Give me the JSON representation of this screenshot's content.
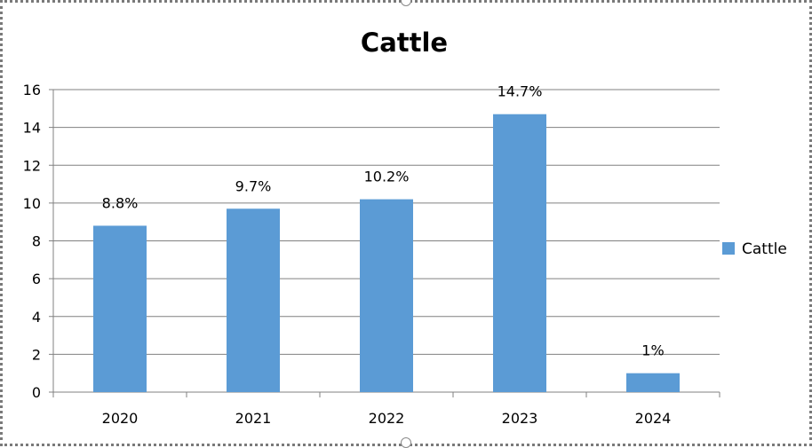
{
  "chart_data": {
    "type": "bar",
    "title": "Cattle",
    "categories": [
      "2020",
      "2021",
      "2022",
      "2023",
      "2024"
    ],
    "series": [
      {
        "name": "Cattle",
        "values": [
          8.8,
          9.7,
          10.2,
          14.7,
          1
        ],
        "data_labels": [
          "8.8%",
          "9.7%",
          "10.2%",
          "14.7%",
          "1%"
        ]
      }
    ],
    "ylim": [
      0,
      16
    ],
    "y_ticks": [
      "0",
      "2",
      "4",
      "6",
      "8",
      "10",
      "12",
      "14",
      "16"
    ],
    "grid": true,
    "legend_position": "right",
    "colors": {
      "bar": "#5b9bd5",
      "grid": "#808080",
      "axis": "#808080"
    }
  }
}
